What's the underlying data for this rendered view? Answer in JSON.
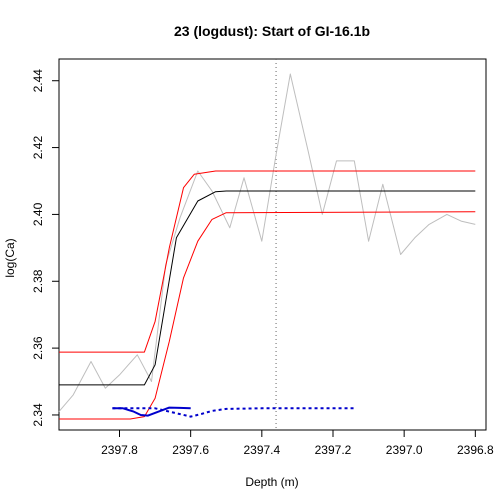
{
  "chart_data": {
    "type": "line",
    "title": "23 (logdust): Start of GI-16.1b",
    "xlabel": "Depth (m)",
    "ylabel": "log(Ca)",
    "xlim": [
      2397.97,
      2396.77
    ],
    "ylim": [
      2.3355,
      2.4465
    ],
    "x_reversed": true,
    "x_ticks": [
      2397.8,
      2397.6,
      2397.4,
      2397.2,
      2397.0,
      2396.8
    ],
    "x_tick_labels": [
      "2397.8",
      "2397.6",
      "2397.4",
      "2397.2",
      "2397.0",
      "2396.8"
    ],
    "y_ticks": [
      2.34,
      2.36,
      2.38,
      2.4,
      2.42,
      2.44
    ],
    "y_tick_labels": [
      "2.34",
      "2.36",
      "2.38",
      "2.40",
      "2.42",
      "2.44"
    ],
    "vline": {
      "x": 2397.36,
      "style": "dotted",
      "color": "#666666"
    },
    "series": [
      {
        "role": "observations",
        "color": "#bebebe",
        "x": [
          2397.97,
          2397.93,
          2397.88,
          2397.84,
          2397.8,
          2397.75,
          2397.71,
          2397.67,
          2397.63,
          2397.58,
          2397.54,
          2397.49,
          2397.45,
          2397.4,
          2397.36,
          2397.32,
          2397.27,
          2397.23,
          2397.19,
          2397.14,
          2397.1,
          2397.06,
          2397.01,
          2396.97,
          2396.93,
          2396.88,
          2396.84,
          2396.8
        ],
        "y": [
          2.341,
          2.346,
          2.356,
          2.348,
          2.352,
          2.358,
          2.35,
          2.385,
          2.399,
          2.413,
          2.407,
          2.396,
          2.411,
          2.392,
          2.418,
          2.442,
          2.419,
          2.4,
          2.416,
          2.416,
          2.392,
          2.409,
          2.388,
          2.393,
          2.397,
          2.4,
          2.398,
          2.397
        ]
      },
      {
        "role": "fit-median",
        "color": "#000000",
        "x": [
          2397.97,
          2397.73,
          2397.7,
          2397.64,
          2397.58,
          2397.53,
          2397.5,
          2396.8
        ],
        "y": [
          2.349,
          2.349,
          2.355,
          2.393,
          2.404,
          2.4068,
          2.407,
          2.407
        ]
      },
      {
        "role": "fit-upper",
        "color": "#ff0000",
        "x": [
          2397.97,
          2397.73,
          2397.7,
          2397.66,
          2397.62,
          2397.59,
          2397.56,
          2397.53,
          2397.5,
          2396.8
        ],
        "y": [
          2.3588,
          2.3588,
          2.368,
          2.39,
          2.408,
          2.412,
          2.4125,
          2.413,
          2.413,
          2.413
        ]
      },
      {
        "role": "fit-lower",
        "color": "#ff0000",
        "x": [
          2397.97,
          2397.77,
          2397.73,
          2397.7,
          2397.66,
          2397.62,
          2397.58,
          2397.54,
          2397.5,
          2396.8
        ],
        "y": [
          2.3388,
          2.3388,
          2.3395,
          2.345,
          2.362,
          2.381,
          2.392,
          2.3985,
          2.4005,
          2.4008
        ]
      },
      {
        "role": "transition-pdf-solid",
        "color": "#0000cc",
        "style": "solid",
        "x": [
          2397.82,
          2397.79,
          2397.76,
          2397.74,
          2397.72,
          2397.69,
          2397.66,
          2397.63,
          2397.6
        ],
        "y": [
          2.342,
          2.342,
          2.341,
          2.34,
          2.3398,
          2.341,
          2.3422,
          2.3421,
          2.342
        ]
      },
      {
        "role": "transition-pdf-dashed",
        "color": "#0000cc",
        "style": "dashed",
        "x": [
          2397.82,
          2397.7,
          2397.6,
          2397.57,
          2397.54,
          2397.5,
          2397.4,
          2397.3,
          2397.2,
          2397.14
        ],
        "y": [
          2.342,
          2.342,
          2.3395,
          2.3403,
          2.3412,
          2.3418,
          2.342,
          2.342,
          2.342,
          2.342
        ]
      }
    ]
  }
}
